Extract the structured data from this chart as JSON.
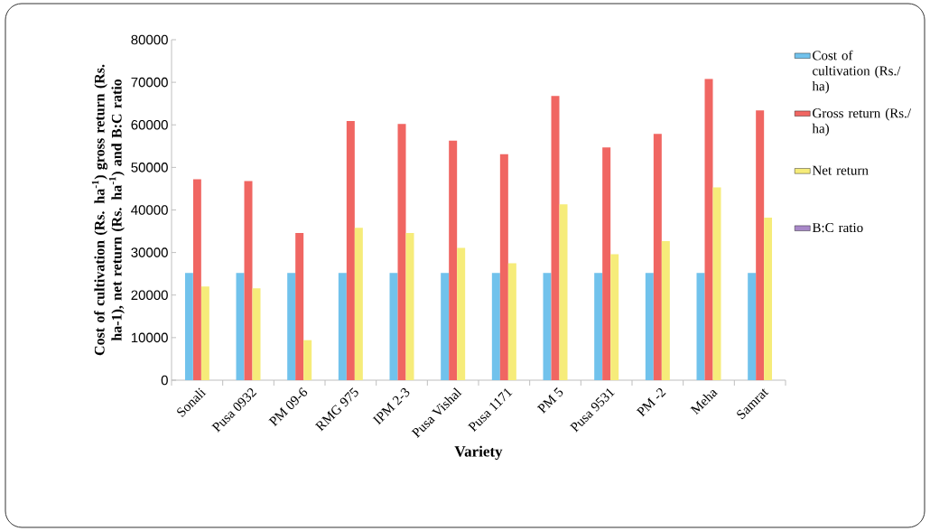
{
  "chart_data": {
    "type": "bar",
    "ylabel": "Cost of cultivation (Rs. ha$^{-1}$) gross return (Rs. ha-1), net return (Rs. ha$^{-1}$) and B:C ratio",
    "xlabel": "Variety",
    "categories": [
      "Sonali",
      "Pusa 0932",
      "PM 09-6",
      "RMG 975",
      "IPM 2-3",
      "Pusa Vishal",
      "Pusa 1171",
      "PM    5",
      "Pusa 9531",
      "PM -2",
      "Meha",
      "Samrat"
    ],
    "series": [
      {
        "name": "Cost of cultivation (Rs./ ha)",
        "color": "#71c2ec",
        "values": [
          25200,
          25200,
          25200,
          25200,
          25200,
          25200,
          25200,
          25200,
          25200,
          25200,
          25200,
          25200
        ]
      },
      {
        "name": "Gross return (Rs./ ha)",
        "color": "#f06662",
        "values": [
          47200,
          46800,
          34600,
          60900,
          60200,
          56300,
          53100,
          66800,
          54700,
          57900,
          70800,
          63400
        ]
      },
      {
        "name": "Net return",
        "color": "#f6ec7a",
        "values": [
          22000,
          21600,
          9400,
          35800,
          34600,
          31100,
          27500,
          41300,
          29600,
          32700,
          45300,
          38200
        ]
      },
      {
        "name": "B:C ratio",
        "color": "#a888c8",
        "values": [
          null,
          null,
          null,
          null,
          null,
          null,
          null,
          null,
          null,
          null,
          null,
          null
        ]
      }
    ],
    "ylim": [
      0,
      80000
    ],
    "yticks": [
      0,
      10000,
      20000,
      30000,
      40000,
      50000,
      60000,
      70000,
      80000
    ],
    "legend": "right",
    "grid": false
  }
}
